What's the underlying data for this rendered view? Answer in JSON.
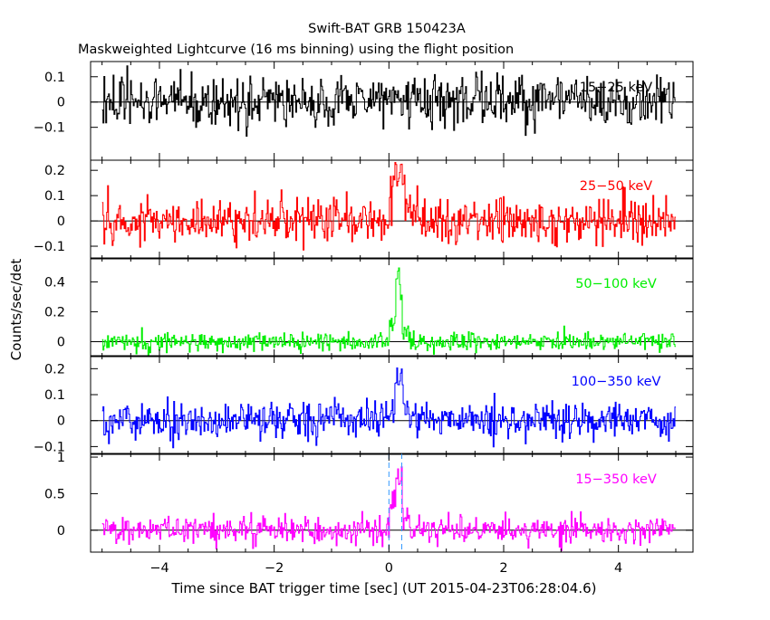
{
  "title": "Swift-BAT GRB 150423A",
  "subtitle": "Maskweighted Lightcurve (16 ms binning) using the flight position",
  "chart_data": {
    "type": "line",
    "xlabel": "Time since BAT trigger time [sec] (UT 2015-04-23T06:28:04.6)",
    "ylabel": "Counts/sec/det",
    "xlim": [
      -5.2,
      5.3
    ],
    "x_ticks": [
      {
        "value": -4,
        "label": "−4"
      },
      {
        "value": -2,
        "label": "−2"
      },
      {
        "value": 0,
        "label": "0"
      },
      {
        "value": 2,
        "label": "2"
      },
      {
        "value": 4,
        "label": "4"
      }
    ],
    "x_start": -5.0,
    "x_end": 5.0,
    "bin_width": 0.016,
    "markers_x": [
      0,
      0.224
    ],
    "grid": false,
    "panels": [
      {
        "name": "15−25 keV",
        "color": "#000000",
        "ylim": [
          -0.23,
          0.16
        ],
        "y_ticks": [
          {
            "value": 0.1,
            "label": "0.1"
          },
          {
            "value": 0,
            "label": "0"
          },
          {
            "value": -0.1,
            "label": "−0.1"
          }
        ],
        "noise": 0.05,
        "burst": []
      },
      {
        "name": "25−50 keV",
        "color": "#ff0000",
        "ylim": [
          -0.15,
          0.24
        ],
        "y_ticks": [
          {
            "value": 0.2,
            "label": "0.2"
          },
          {
            "value": 0.1,
            "label": "0.1"
          },
          {
            "value": 0,
            "label": "0"
          },
          {
            "value": -0.1,
            "label": "−0.1"
          }
        ],
        "noise": 0.045,
        "burst": [
          {
            "t0": 0.0,
            "t1": 0.05,
            "peak": 0.12
          },
          {
            "t0": 0.05,
            "t1": 0.28,
            "peak": 0.16
          },
          {
            "t0": 0.28,
            "t1": 0.5,
            "peak": 0.06
          }
        ]
      },
      {
        "name": "50−100 keV",
        "color": "#00ee00",
        "ylim": [
          -0.1,
          0.56
        ],
        "y_ticks": [
          {
            "value": 0.4,
            "label": "0.4"
          },
          {
            "value": 0.2,
            "label": "0.2"
          },
          {
            "value": 0,
            "label": "0"
          }
        ],
        "noise": 0.03,
        "burst": [
          {
            "t0": 0.0,
            "t1": 0.12,
            "peak": 0.12
          },
          {
            "t0": 0.12,
            "t1": 0.24,
            "peak": 0.38
          },
          {
            "t0": 0.24,
            "t1": 0.34,
            "peak": 0.08
          }
        ]
      },
      {
        "name": "100−350 keV",
        "color": "#0000ff",
        "ylim": [
          -0.13,
          0.25
        ],
        "y_ticks": [
          {
            "value": 0.2,
            "label": "0.2"
          },
          {
            "value": 0.1,
            "label": "0.1"
          },
          {
            "value": 0,
            "label": "0"
          },
          {
            "value": -0.1,
            "label": "−0.1"
          }
        ],
        "noise": 0.035,
        "burst": [
          {
            "t0": 0.0,
            "t1": 0.1,
            "peak": 0.07
          },
          {
            "t0": 0.1,
            "t1": 0.25,
            "peak": 0.15
          },
          {
            "t0": 0.25,
            "t1": 0.35,
            "peak": 0.04
          }
        ]
      },
      {
        "name": "15−350 keV",
        "color": "#ff00ff",
        "ylim": [
          -0.3,
          1.05
        ],
        "y_ticks": [
          {
            "value": 1,
            "label": "1"
          },
          {
            "value": 0.5,
            "label": "0.5"
          },
          {
            "value": 0,
            "label": "0"
          }
        ],
        "noise": 0.09,
        "burst": [
          {
            "t0": 0.0,
            "t1": 0.12,
            "peak": 0.35
          },
          {
            "t0": 0.12,
            "t1": 0.24,
            "peak": 0.75
          },
          {
            "t0": 0.24,
            "t1": 0.36,
            "peak": 0.2
          }
        ]
      }
    ]
  }
}
